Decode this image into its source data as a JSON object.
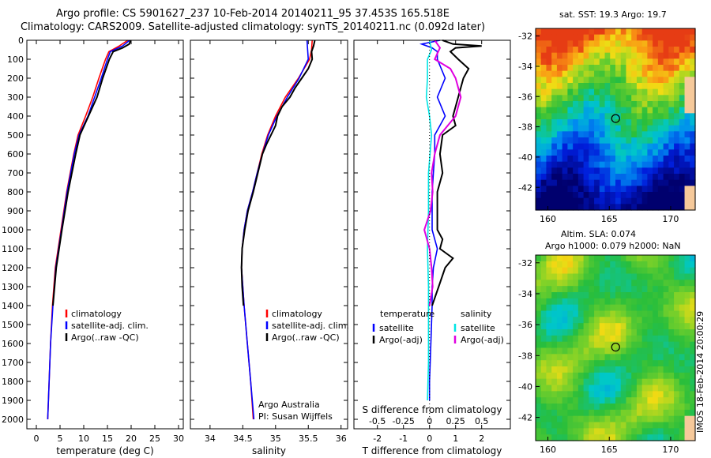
{
  "title": {
    "line1": "Argo profile: CS 5901627_237 10-Feb-2014 20140211_95 37.453S 165.518E",
    "line2": "Climatology: CARS2009. Satellite-adjusted climatology: synTS_20140211.nc (0.092d later)"
  },
  "colors": {
    "climatology": "#ff0000",
    "satellite": "#0000ff",
    "argo": "#000000",
    "sal_satellite": "#00e5e5",
    "sal_argo": "#e000e0"
  },
  "chart_data": [
    {
      "type": "line",
      "name": "temperature-profile",
      "xlabel": "temperature (deg C)",
      "ylabel": "",
      "xlim": [
        -2,
        31
      ],
      "ylim": [
        2050,
        0
      ],
      "xticks": [
        0,
        5,
        10,
        15,
        20,
        25,
        30
      ],
      "yticks": [
        0,
        100,
        200,
        300,
        400,
        500,
        600,
        700,
        800,
        900,
        1000,
        1100,
        1200,
        1300,
        1400,
        1500,
        1600,
        1700,
        1800,
        1900,
        2000
      ],
      "legend": [
        "climatology",
        "satellite-adj. clim.",
        "Argo(..raw -QC)"
      ],
      "series": [
        {
          "name": "climatology",
          "depth": [
            0,
            30,
            60,
            100,
            200,
            300,
            400,
            500,
            600,
            800,
            1000,
            1200,
            1400,
            1600,
            1800,
            2000
          ],
          "values": [
            19.3,
            17.5,
            15.3,
            14.6,
            13.2,
            11.9,
            10.4,
            8.8,
            7.9,
            6.4,
            5.2,
            4.0,
            3.4,
            3.0,
            2.7,
            2.4
          ]
        },
        {
          "name": "satellite-adj. clim.",
          "depth": [
            0,
            30,
            60,
            100,
            200,
            300,
            400,
            500,
            600,
            800,
            1000,
            1200,
            1400,
            1600,
            1800,
            2000
          ],
          "values": [
            19.7,
            18.2,
            15.6,
            15.0,
            13.7,
            12.3,
            10.9,
            9.0,
            8.0,
            6.5,
            5.3,
            4.1,
            3.5,
            3.0,
            2.7,
            2.4
          ]
        },
        {
          "name": "Argo(..raw -QC)",
          "depth": [
            0,
            20,
            40,
            60,
            100,
            200,
            300,
            400,
            500,
            600,
            800,
            1000,
            1200,
            1400
          ],
          "values": [
            19.9,
            19.6,
            18.2,
            16.2,
            15.4,
            14.0,
            12.8,
            11.0,
            9.2,
            8.3,
            6.7,
            5.4,
            4.2,
            3.5
          ]
        }
      ]
    },
    {
      "type": "line",
      "name": "salinity-profile",
      "xlabel": "salinity",
      "ylabel": "",
      "xlim": [
        33.7,
        36.1
      ],
      "ylim": [
        2050,
        0
      ],
      "xticks": [
        34,
        34.5,
        35,
        35.5,
        36
      ],
      "legend": [
        "climatology",
        "satellite-adj. clim.",
        "Argo(..raw -QC)"
      ],
      "footnote": [
        "Argo Australia",
        "PI: Susan Wijffels"
      ],
      "series": [
        {
          "name": "climatology",
          "depth": [
            0,
            50,
            100,
            200,
            300,
            400,
            500,
            600,
            700,
            800,
            900,
            1000,
            1100,
            1200,
            1400,
            1600,
            1800,
            2000
          ],
          "values": [
            35.56,
            35.55,
            35.52,
            35.35,
            35.15,
            35.0,
            34.88,
            34.79,
            34.72,
            34.65,
            34.57,
            34.52,
            34.49,
            34.48,
            34.52,
            34.57,
            34.62,
            34.66
          ]
        },
        {
          "name": "satellite-adj. clim.",
          "depth": [
            0,
            50,
            100,
            200,
            300,
            400,
            500,
            600,
            700,
            800,
            900,
            1000,
            1100,
            1200,
            1400,
            1600,
            1800,
            2000
          ],
          "values": [
            35.48,
            35.49,
            35.5,
            35.36,
            35.18,
            35.02,
            34.89,
            34.8,
            34.72,
            34.65,
            34.57,
            34.52,
            34.49,
            34.48,
            34.52,
            34.57,
            34.62,
            34.67
          ]
        },
        {
          "name": "Argo(..raw -QC)",
          "depth": [
            0,
            30,
            60,
            100,
            150,
            200,
            250,
            300,
            350,
            400,
            450,
            500,
            550,
            600,
            700,
            800,
            900,
            1000,
            1100,
            1200,
            1300,
            1400
          ],
          "values": [
            35.6,
            35.58,
            35.55,
            35.56,
            35.5,
            35.4,
            35.3,
            35.22,
            35.1,
            35.03,
            35.0,
            34.93,
            34.86,
            34.8,
            34.73,
            34.66,
            34.58,
            34.53,
            34.49,
            34.48,
            34.49,
            34.51
          ]
        }
      ]
    },
    {
      "type": "line",
      "name": "difference-profile",
      "xlabel": "T difference from climatology",
      "xlabel_top": "S difference from climatology",
      "xlim": [
        -2.9,
        3.1
      ],
      "ylim": [
        2050,
        0
      ],
      "xticks": [
        -2,
        -1,
        0,
        1,
        2
      ],
      "xticks_S": [
        -0.5,
        -0.25,
        0,
        0.25,
        0.5
      ],
      "legend": {
        "temperature": "temperature",
        "salinity": "salinity",
        "t_satellite": "satellite",
        "t_argo": "Argo(-adj)",
        "s_satellite": "satellite",
        "s_argo": "Argo(-adj)"
      },
      "series": [
        {
          "name": "T satellite",
          "depth": [
            0,
            20,
            40,
            60,
            100,
            200,
            300,
            400,
            500,
            600,
            700,
            800,
            1000,
            1100,
            1200,
            1300,
            1400,
            1600,
            1800,
            1900
          ],
          "values": [
            0.4,
            -0.3,
            0.1,
            0.3,
            0.3,
            0.6,
            0.3,
            0.6,
            0.2,
            0.2,
            0.15,
            0.1,
            0.1,
            0.3,
            0.15,
            0.1,
            0.1,
            0.05,
            0.0,
            0.0
          ]
        },
        {
          "name": "T Argo(-adj)",
          "depth": [
            0,
            20,
            30,
            40,
            60,
            100,
            150,
            200,
            300,
            400,
            450,
            500,
            600,
            700,
            800,
            900,
            1000,
            1050,
            1100,
            1150,
            1200,
            1300,
            1400
          ],
          "values": [
            0.5,
            0.9,
            2.0,
            1.0,
            0.8,
            1.1,
            1.5,
            1.3,
            1.1,
            0.9,
            1.0,
            0.5,
            0.4,
            0.5,
            0.3,
            0.3,
            0.3,
            0.5,
            0.4,
            0.9,
            0.6,
            0.35,
            0.1
          ]
        },
        {
          "name": "S satellite",
          "depth": [
            0,
            50,
            100,
            200,
            300,
            400,
            500,
            700,
            900,
            1100,
            1300,
            1500,
            1700,
            1900
          ],
          "values": [
            0.0,
            0.02,
            -0.02,
            -0.02,
            -0.03,
            0.0,
            0.02,
            -0.01,
            -0.01,
            -0.02,
            -0.01,
            -0.01,
            -0.01,
            -0.02
          ]
        },
        {
          "name": "S Argo(-adj)",
          "depth": [
            0,
            40,
            100,
            150,
            200,
            300,
            400,
            500,
            600,
            700,
            800,
            900,
            1000,
            1100,
            1200,
            1300,
            1400
          ],
          "values": [
            0.05,
            0.1,
            0.05,
            0.2,
            0.25,
            0.3,
            0.25,
            0.1,
            0.05,
            0.02,
            0.03,
            0.01,
            -0.05,
            0.0,
            0.02,
            0.03,
            0.0
          ]
        }
      ]
    },
    {
      "type": "heatmap",
      "name": "sst-map",
      "title": "sat. SST: 19.3 Argo: 19.7",
      "xlim": [
        159,
        172
      ],
      "ylim": [
        -43.5,
        -31.5
      ],
      "xticks": [
        160,
        165,
        170
      ],
      "yticks": [
        -32,
        -34,
        -36,
        -38,
        -40,
        -42
      ],
      "marker": {
        "lon": 165.518,
        "lat": -37.453
      }
    },
    {
      "type": "heatmap",
      "name": "sla-map",
      "title": "Altim. SLA: 0.074",
      "subtitle": "Argo h1000: 0.079 h2000: NaN",
      "xlim": [
        159,
        172
      ],
      "ylim": [
        -43.5,
        -31.5
      ],
      "xticks": [
        160,
        165,
        170
      ],
      "yticks": [
        -32,
        -34,
        -36,
        -38,
        -40,
        -42
      ],
      "marker": {
        "lon": 165.518,
        "lat": -37.453
      }
    }
  ],
  "stamp": "IMOS 18-Feb-2014 20:00:29"
}
